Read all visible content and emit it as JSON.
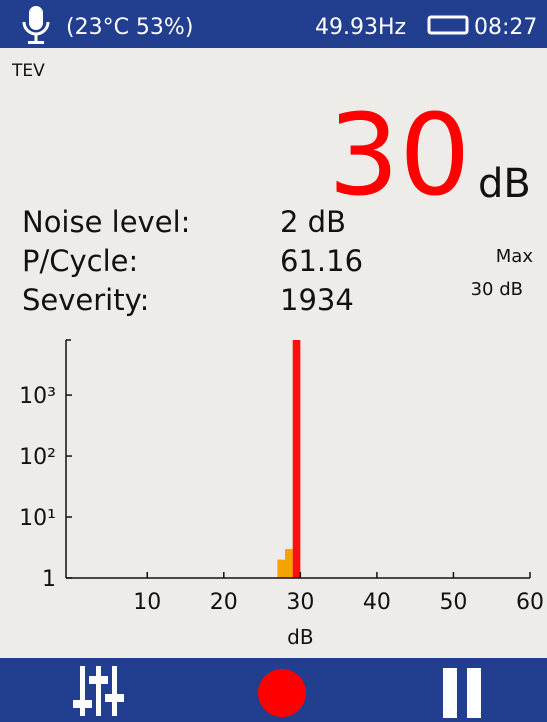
{
  "status_bar": {
    "environment": "(23°C  53%)",
    "frequency": "49.93Hz",
    "time": "08:27"
  },
  "mode": "TEV",
  "reading": {
    "value": 30,
    "unit": "dB"
  },
  "stats": [
    {
      "label": "Noise level:",
      "value": "2 dB"
    },
    {
      "label": "P/Cycle:",
      "value": "61.16"
    },
    {
      "label": "Severity:",
      "value": "1934"
    }
  ],
  "max": {
    "label": "Max",
    "value": "30 dB"
  },
  "chart_data": {
    "type": "histogram",
    "xlabel": "dB",
    "bins": [
      27,
      28,
      29,
      30
    ],
    "values": [
      2,
      3,
      8000
    ],
    "colors": [
      "#f5a300",
      "#f5a300",
      "#ff1010"
    ],
    "xlim": [
      0,
      60
    ],
    "xticks": [
      10,
      20,
      30,
      40,
      50,
      60
    ],
    "ylim": [
      1,
      8000
    ],
    "log_y": true,
    "yticks": [
      1,
      {
        "value": 10,
        "label": "10¹"
      },
      {
        "value": 100,
        "label": "10²"
      },
      {
        "value": 1000,
        "label": "10³"
      }
    ]
  }
}
